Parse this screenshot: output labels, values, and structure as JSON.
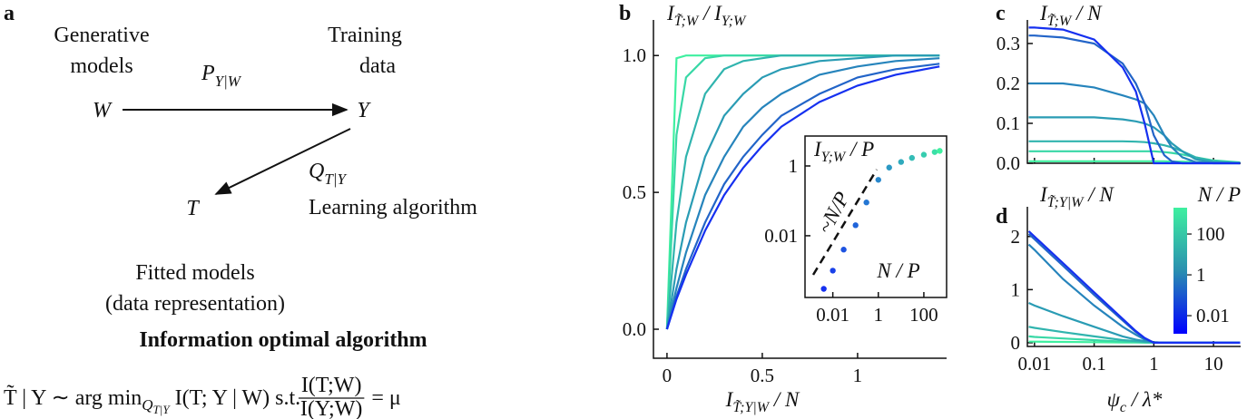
{
  "diagram": {
    "panel": "a",
    "generative": [
      "Generative",
      "models"
    ],
    "training": [
      "Training",
      "data"
    ],
    "p_label": [
      {
        "t": "P"
      },
      {
        "sub": "Y|W"
      }
    ],
    "w": "W",
    "y": "Y",
    "t": "T",
    "q_label": [
      {
        "t": "Q"
      },
      {
        "sub": "T|Y"
      }
    ],
    "learning": "Learning algorithm",
    "fitted": [
      "Fitted models",
      "(data representation)"
    ],
    "heading": "Information optimal algorithm",
    "equation": {
      "lhs": [
        {
          "t": "T̃ | Y ∼ arg min"
        },
        {
          "sub": "Q"
        },
        {
          "subsub": "T|Y"
        },
        {
          "t": " I(T; Y | W) s.t. "
        }
      ],
      "numerator": "I(T;W)",
      "denominator": "I(Y;W)",
      "rhs": "= μ"
    }
  },
  "chart_data": [
    {
      "type": "line",
      "panel": "b",
      "title": [
        {
          "t": "I"
        },
        {
          "sub": "T̃;W"
        },
        {
          "t": " / I"
        },
        {
          "sub": "Y;W"
        }
      ],
      "xlabel": [
        {
          "t": "I"
        },
        {
          "sub": "T̃;Y|W"
        },
        {
          "t": " / N"
        }
      ],
      "x": [
        0,
        0.05,
        0.1,
        0.2,
        0.3,
        0.4,
        0.5,
        0.6,
        0.8,
        1,
        1.2,
        1.43
      ],
      "series": [
        {
          "color": "#3ff0a0",
          "values": [
            0,
            0.99,
            1,
            1,
            1,
            1,
            1,
            1,
            1,
            1,
            1,
            1
          ]
        },
        {
          "color": "#38d8a6",
          "values": [
            0,
            0.71,
            0.92,
            0.99,
            1,
            1,
            1,
            1,
            1,
            1,
            1,
            1
          ]
        },
        {
          "color": "#30b4ae",
          "values": [
            0,
            0.39,
            0.63,
            0.86,
            0.95,
            0.98,
            0.99,
            1,
            1,
            1,
            1,
            1
          ]
        },
        {
          "color": "#2a9cb4",
          "values": [
            0,
            0.22,
            0.39,
            0.63,
            0.78,
            0.86,
            0.92,
            0.95,
            0.98,
            0.99,
            1,
            1
          ]
        },
        {
          "color": "#2684bc",
          "values": [
            0,
            0.15,
            0.28,
            0.49,
            0.63,
            0.74,
            0.81,
            0.86,
            0.93,
            0.96,
            0.98,
            0.99
          ]
        },
        {
          "color": "#2264c8",
          "values": [
            0,
            0.12,
            0.22,
            0.39,
            0.53,
            0.63,
            0.71,
            0.78,
            0.86,
            0.92,
            0.95,
            0.97
          ]
        },
        {
          "color": "#1530f0",
          "values": [
            0,
            0.11,
            0.2,
            0.36,
            0.49,
            0.59,
            0.67,
            0.74,
            0.83,
            0.89,
            0.93,
            0.96
          ]
        }
      ],
      "xlim": [
        -0.071,
        1.467
      ],
      "ylim": [
        -0.106,
        1.13
      ],
      "xticks": [
        0,
        0.5,
        1
      ],
      "yticks": [
        {
          "value": 0,
          "label": "0.0"
        },
        {
          "value": 0.5,
          "label": "0.5"
        },
        {
          "value": 1,
          "label": "1.0"
        }
      ],
      "xlog": false,
      "ylog": false,
      "xtick_labels": true
    },
    {
      "type": "scatter",
      "title": [
        {
          "t": "I"
        },
        {
          "sub": "Y;W"
        },
        {
          "t": " / P"
        }
      ],
      "xlabel": [
        {
          "t": "N / P"
        }
      ],
      "annotation": "~N/P",
      "x": [
        0.004,
        0.01,
        0.03,
        0.1,
        0.3,
        1,
        3,
        10,
        30,
        100,
        300,
        500
      ],
      "values": [
        0.0003,
        0.001,
        0.004,
        0.02,
        0.09,
        0.4,
        0.9,
        1.3,
        1.7,
        2.1,
        2.5,
        2.7
      ],
      "color_range": [
        "#1530f0",
        "#3ff0a0"
      ],
      "xlim": [
        0.0006,
        1000
      ],
      "ylim": [
        0.00017,
        7.2
      ],
      "xticks": [
        0.01,
        1,
        100
      ],
      "yticks": [
        0.01,
        1
      ],
      "xlog": true,
      "ylog": true,
      "xtick_labels": true
    },
    {
      "type": "line",
      "panel": "c",
      "title": [
        {
          "t": "I"
        },
        {
          "sub": "T̃;W"
        },
        {
          "t": " / N"
        }
      ],
      "x": [
        0.008,
        0.01,
        0.03,
        0.1,
        0.3,
        0.5,
        0.7,
        1,
        1.5,
        2,
        3,
        5,
        10,
        28
      ],
      "series": [
        {
          "color": "#3ff0a0",
          "values": [
            0.005,
            0.005,
            0.005,
            0.005,
            0.005,
            0.005,
            0.005,
            0.005,
            0.005,
            0.004,
            0.004,
            0.003,
            0.002,
            0.001
          ]
        },
        {
          "color": "#38d8a6",
          "values": [
            0.03,
            0.03,
            0.03,
            0.03,
            0.03,
            0.03,
            0.03,
            0.03,
            0.028,
            0.026,
            0.022,
            0.015,
            0.007,
            0.002
          ]
        },
        {
          "color": "#30b4ae",
          "values": [
            0.055,
            0.055,
            0.055,
            0.055,
            0.055,
            0.054,
            0.053,
            0.05,
            0.045,
            0.04,
            0.03,
            0.015,
            0.005,
            0
          ]
        },
        {
          "color": "#2a9cb4",
          "values": [
            0.115,
            0.115,
            0.115,
            0.115,
            0.11,
            0.105,
            0.1,
            0.09,
            0.07,
            0.05,
            0.03,
            0.01,
            0.002,
            0
          ]
        },
        {
          "color": "#2684bc",
          "values": [
            0.2,
            0.2,
            0.2,
            0.19,
            0.17,
            0.16,
            0.15,
            0.12,
            0.07,
            0.04,
            0.015,
            0.003,
            0,
            0
          ]
        },
        {
          "color": "#2264c8",
          "values": [
            0.32,
            0.32,
            0.315,
            0.3,
            0.25,
            0.2,
            0.15,
            0.07,
            0.02,
            0.005,
            0,
            0,
            0,
            0
          ]
        },
        {
          "color": "#1530f0",
          "values": [
            0.34,
            0.34,
            0.335,
            0.31,
            0.24,
            0.18,
            0.1,
            0,
            0,
            0,
            0,
            0,
            0,
            0
          ]
        }
      ],
      "xlim": [
        0.0076,
        28.5
      ],
      "ylim": [
        0,
        0.359
      ],
      "xticks": [
        0.01,
        0.1,
        1,
        10
      ],
      "yticks": [
        {
          "value": 0,
          "label": "0.0"
        },
        0.1,
        0.2,
        0.3
      ],
      "xlog": true,
      "ylog": false,
      "xtick_labels": false
    },
    {
      "type": "line",
      "panel": "d",
      "title": [
        {
          "t": "I"
        },
        {
          "sub": "T̃;Y|W"
        },
        {
          "t": " / N"
        }
      ],
      "xlabel": [
        {
          "t": "ψ"
        },
        {
          "sub": "c"
        },
        {
          "t": " / λ*"
        }
      ],
      "x": [
        0.008,
        0.01,
        0.03,
        0.1,
        0.3,
        0.5,
        0.7,
        1,
        1.5,
        2,
        3,
        5,
        10,
        28
      ],
      "series": [
        {
          "color": "#3ff0a0",
          "values": [
            0.02,
            0.02,
            0.015,
            0.01,
            0.005,
            0.003,
            0.002,
            0.001,
            0,
            0,
            0,
            0,
            0,
            0
          ]
        },
        {
          "color": "#38d8a6",
          "values": [
            0.12,
            0.11,
            0.08,
            0.05,
            0.02,
            0.01,
            0.005,
            0.002,
            0,
            0,
            0,
            0,
            0,
            0
          ]
        },
        {
          "color": "#30b4ae",
          "values": [
            0.3,
            0.28,
            0.2,
            0.12,
            0.05,
            0.03,
            0.015,
            0.005,
            0,
            0,
            0,
            0,
            0,
            0
          ]
        },
        {
          "color": "#2a9cb4",
          "values": [
            0.75,
            0.7,
            0.5,
            0.3,
            0.12,
            0.06,
            0.03,
            0.01,
            0,
            0,
            0,
            0,
            0,
            0
          ]
        },
        {
          "color": "#2684bc",
          "values": [
            1.85,
            1.75,
            1.2,
            0.7,
            0.3,
            0.15,
            0.06,
            0.01,
            0,
            0,
            0,
            0,
            0,
            0
          ]
        },
        {
          "color": "#2264c8",
          "values": [
            2.05,
            1.95,
            1.45,
            0.9,
            0.42,
            0.2,
            0.08,
            0,
            0,
            0,
            0,
            0,
            0,
            0
          ]
        },
        {
          "color": "#1530f0",
          "values": [
            2.1,
            2,
            1.5,
            0.95,
            0.45,
            0.22,
            0.09,
            0,
            0,
            0,
            0,
            0,
            0,
            0
          ]
        }
      ],
      "xlim": [
        0.0076,
        28.5
      ],
      "ylim": [
        -0.07,
        2.56
      ],
      "xticks": [
        0.01,
        0.1,
        1,
        10
      ],
      "yticks": [
        0,
        1,
        2
      ],
      "xlog": true,
      "ylog": false,
      "xtick_labels": true,
      "colorbar": {
        "title": [
          {
            "t": "N / P"
          }
        ],
        "lim": [
          0.0013,
          1950
        ],
        "ticks": [
          {
            "value": 0.01,
            "label": "0.01"
          },
          1,
          100
        ],
        "colors": [
          "#0000ff",
          "#2a8fb0",
          "#3ff0a0"
        ]
      }
    }
  ]
}
